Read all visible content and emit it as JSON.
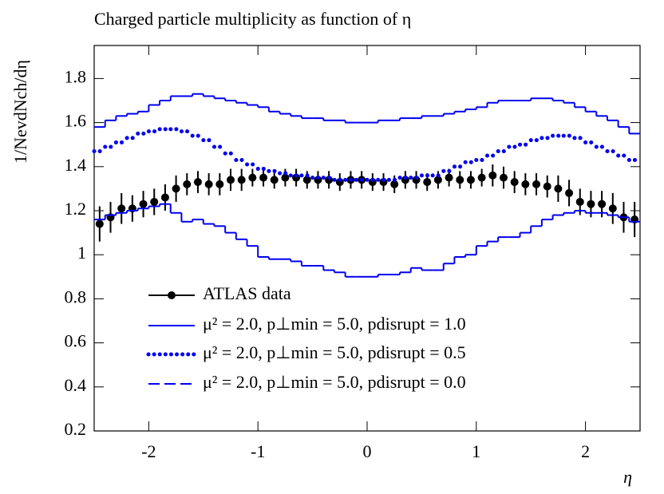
{
  "chart_data": {
    "type": "histogram",
    "title": "Charged particle multiplicity as function of η",
    "x_label": "η",
    "y_label": "1/NevdNch/dη",
    "bins": [
      -2.5,
      -2.4,
      -2.3,
      -2.2,
      -2.1,
      -2.0,
      -1.9,
      -1.8,
      -1.7,
      -1.6,
      -1.5,
      -1.4,
      -1.3,
      -1.2,
      -1.1,
      -1.0,
      -0.9,
      -0.8,
      -0.7,
      -0.6,
      -0.5,
      -0.4,
      -0.3,
      -0.2,
      -0.1,
      0,
      0.1,
      0.2,
      0.3,
      0.4,
      0.5,
      0.6,
      0.7,
      0.8,
      0.9,
      1.0,
      1.1,
      1.2,
      1.3,
      1.4,
      1.5,
      1.6,
      1.7,
      1.8,
      1.9,
      2.0,
      2.1,
      2.2,
      2.3,
      2.4,
      2.5
    ],
    "xlim": [
      -2.5,
      2.5
    ],
    "xticks": [
      -2,
      -1,
      0,
      1,
      2
    ],
    "ylim": [
      0.2,
      1.95
    ],
    "yticks": [
      0.2,
      0.4,
      0.6,
      0.8,
      1,
      1.2,
      1.4,
      1.6,
      1.8
    ],
    "legend": "lower left",
    "series": [
      {
        "name": "ATLAS data",
        "color": "#000000",
        "style": "points",
        "values": [
          1.14,
          1.17,
          1.21,
          1.21,
          1.23,
          1.24,
          1.26,
          1.3,
          1.32,
          1.33,
          1.32,
          1.32,
          1.34,
          1.34,
          1.35,
          1.35,
          1.34,
          1.35,
          1.35,
          1.34,
          1.34,
          1.34,
          1.33,
          1.34,
          1.34,
          1.33,
          1.33,
          1.32,
          1.34,
          1.34,
          1.33,
          1.34,
          1.35,
          1.34,
          1.34,
          1.35,
          1.36,
          1.35,
          1.33,
          1.32,
          1.32,
          1.31,
          1.3,
          1.28,
          1.24,
          1.23,
          1.23,
          1.21,
          1.17,
          1.16
        ],
        "errors": [
          0.08,
          0.07,
          0.07,
          0.06,
          0.06,
          0.06,
          0.06,
          0.06,
          0.05,
          0.05,
          0.05,
          0.05,
          0.05,
          0.05,
          0.04,
          0.04,
          0.04,
          0.04,
          0.04,
          0.04,
          0.04,
          0.04,
          0.04,
          0.04,
          0.04,
          0.04,
          0.04,
          0.04,
          0.04,
          0.04,
          0.04,
          0.04,
          0.04,
          0.04,
          0.04,
          0.04,
          0.05,
          0.05,
          0.05,
          0.05,
          0.05,
          0.05,
          0.06,
          0.06,
          0.06,
          0.06,
          0.06,
          0.07,
          0.07,
          0.08
        ]
      },
      {
        "name": "μ² = 2.0, p⊥min = 5.0, pdisrupt = 1.0",
        "color": "#0000ee",
        "style": "solid",
        "values": [
          1.16,
          1.18,
          1.19,
          1.2,
          1.21,
          1.22,
          1.23,
          1.19,
          1.15,
          1.16,
          1.14,
          1.13,
          1.1,
          1.07,
          1.04,
          0.99,
          0.98,
          0.98,
          0.97,
          0.95,
          0.95,
          0.93,
          0.92,
          0.9,
          0.9,
          0.9,
          0.91,
          0.91,
          0.92,
          0.94,
          0.93,
          0.93,
          0.96,
          0.99,
          1.0,
          1.04,
          1.06,
          1.08,
          1.08,
          1.1,
          1.13,
          1.16,
          1.18,
          1.19,
          1.2,
          1.19,
          1.19,
          1.18,
          1.17,
          1.15
        ]
      },
      {
        "name": "μ² = 2.0, p⊥min = 5.0, pdisrupt = 0.5",
        "color": "#0000ee",
        "style": "dotted",
        "values": [
          1.47,
          1.49,
          1.51,
          1.53,
          1.55,
          1.56,
          1.57,
          1.57,
          1.56,
          1.54,
          1.52,
          1.49,
          1.46,
          1.43,
          1.41,
          1.39,
          1.38,
          1.37,
          1.36,
          1.36,
          1.35,
          1.35,
          1.34,
          1.34,
          1.34,
          1.34,
          1.34,
          1.34,
          1.35,
          1.35,
          1.36,
          1.36,
          1.38,
          1.4,
          1.42,
          1.43,
          1.45,
          1.47,
          1.49,
          1.5,
          1.52,
          1.53,
          1.54,
          1.54,
          1.53,
          1.51,
          1.49,
          1.47,
          1.45,
          1.43
        ]
      },
      {
        "name": "μ² = 2.0, p⊥min = 5.0, pdisrupt = 0.0",
        "color": "#0000ee",
        "style": "dashed",
        "values": [
          1.58,
          1.61,
          1.63,
          1.64,
          1.65,
          1.68,
          1.7,
          1.72,
          1.72,
          1.73,
          1.72,
          1.71,
          1.7,
          1.69,
          1.68,
          1.67,
          1.65,
          1.64,
          1.63,
          1.62,
          1.62,
          1.61,
          1.61,
          1.6,
          1.6,
          1.6,
          1.61,
          1.61,
          1.62,
          1.62,
          1.63,
          1.63,
          1.64,
          1.65,
          1.66,
          1.67,
          1.69,
          1.7,
          1.7,
          1.7,
          1.71,
          1.71,
          1.7,
          1.69,
          1.67,
          1.65,
          1.63,
          1.61,
          1.58,
          1.55
        ]
      }
    ]
  }
}
